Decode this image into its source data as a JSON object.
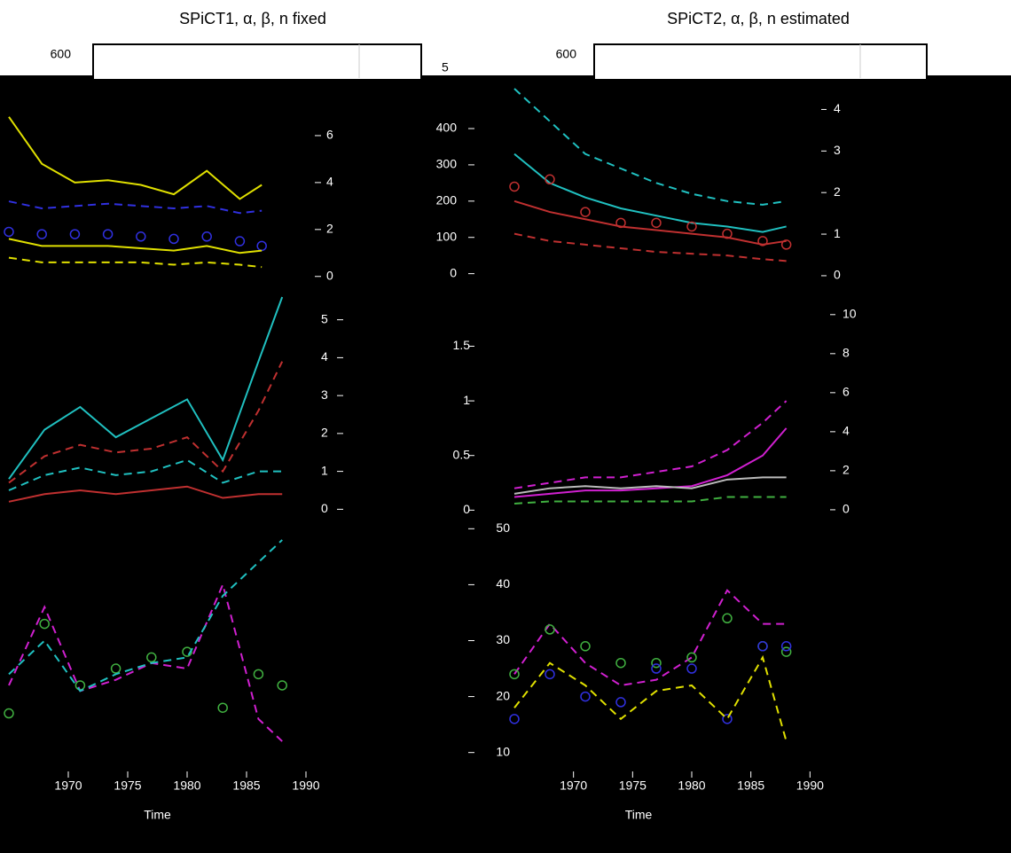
{
  "top_strip_labels": [
    "600",
    "5",
    "600"
  ],
  "chart_data": [
    {
      "type": "line",
      "title": "SPiCT1, α, β, n fixed",
      "x": [
        1965,
        1968,
        1971,
        1974,
        1977,
        1980,
        1983,
        1986,
        1988
      ],
      "xlim": [
        1965,
        1990
      ],
      "ylim": [
        -0.5,
        8
      ],
      "yticks": [
        0,
        2,
        4,
        6
      ],
      "series": [
        {
          "color": "#e0e000",
          "dash": false,
          "markers": false,
          "values": [
            6.8,
            4.8,
            4.0,
            4.1,
            3.9,
            3.5,
            4.5,
            3.3,
            3.9
          ]
        },
        {
          "color": "#3030e0",
          "dash": true,
          "markers": false,
          "values": [
            3.2,
            2.9,
            3.0,
            3.1,
            3.0,
            2.9,
            3.0,
            2.7,
            2.8
          ]
        },
        {
          "color": "#3030e0",
          "dash": false,
          "markers": true,
          "values": [
            1.9,
            1.8,
            1.8,
            1.8,
            1.7,
            1.6,
            1.7,
            1.5,
            1.3
          ]
        },
        {
          "color": "#e0e000",
          "dash": false,
          "markers": false,
          "values": [
            1.6,
            1.3,
            1.3,
            1.3,
            1.2,
            1.1,
            1.3,
            1.0,
            1.1
          ]
        },
        {
          "color": "#e0e000",
          "dash": true,
          "markers": false,
          "values": [
            0.8,
            0.6,
            0.6,
            0.6,
            0.6,
            0.5,
            0.6,
            0.5,
            0.4
          ]
        }
      ]
    },
    {
      "type": "line",
      "title": "SPiCT2, α, β, n estimated",
      "x": [
        1965,
        1968,
        1971,
        1974,
        1977,
        1980,
        1983,
        1986,
        1988
      ],
      "xlim": [
        1962,
        1989
      ],
      "ylim": [
        -40,
        510
      ],
      "yticks": [
        0,
        100,
        200,
        300,
        400
      ],
      "y2lim": [
        -0.3,
        4.5
      ],
      "y2ticks": [
        0,
        1,
        2,
        3,
        4
      ],
      "series": [
        {
          "color": "#20c0c0",
          "dash": true,
          "markers": false,
          "values": [
            510,
            420,
            330,
            290,
            250,
            220,
            200,
            190,
            200
          ]
        },
        {
          "color": "#20c0c0",
          "dash": false,
          "markers": false,
          "values": [
            330,
            250,
            210,
            180,
            160,
            140,
            130,
            115,
            130
          ]
        },
        {
          "color": "#c03030",
          "dash": false,
          "markers": true,
          "values": [
            240,
            260,
            170,
            140,
            140,
            130,
            110,
            90,
            80
          ]
        },
        {
          "color": "#c03030",
          "dash": false,
          "markers": false,
          "values": [
            200,
            170,
            150,
            130,
            120,
            110,
            100,
            80,
            90
          ]
        },
        {
          "color": "#c03030",
          "dash": true,
          "markers": false,
          "values": [
            110,
            90,
            80,
            70,
            60,
            55,
            50,
            40,
            35
          ]
        }
      ]
    },
    {
      "type": "line",
      "x": [
        1965,
        1968,
        1971,
        1974,
        1977,
        1980,
        1983,
        1986,
        1988
      ],
      "xlim": [
        1965,
        1990
      ],
      "ylim": [
        -0.6,
        5.6
      ],
      "yticks": [
        0,
        1,
        2,
        3,
        4,
        5
      ],
      "series": [
        {
          "color": "#20c0c0",
          "dash": false,
          "markers": false,
          "values": [
            0.8,
            2.1,
            2.7,
            1.9,
            2.4,
            2.9,
            1.3,
            3.9,
            5.6
          ]
        },
        {
          "color": "#c03030",
          "dash": true,
          "markers": false,
          "values": [
            0.7,
            1.4,
            1.7,
            1.5,
            1.6,
            1.9,
            1.0,
            2.6,
            3.9
          ]
        },
        {
          "color": "#20c0c0",
          "dash": true,
          "markers": false,
          "values": [
            0.5,
            0.9,
            1.1,
            0.9,
            1.0,
            1.3,
            0.7,
            1.0,
            1.0
          ]
        },
        {
          "color": "#c03030",
          "dash": false,
          "markers": false,
          "values": [
            0.2,
            0.4,
            0.5,
            0.4,
            0.5,
            0.6,
            0.3,
            0.4,
            0.4
          ]
        }
      ]
    },
    {
      "type": "line",
      "x": [
        1965,
        1968,
        1971,
        1974,
        1977,
        1980,
        1983,
        1986,
        1988
      ],
      "xlim": [
        1962,
        1989
      ],
      "ylim": [
        -0.2,
        1.95
      ],
      "yticks": [
        0.0,
        0.5,
        1.0,
        1.5
      ],
      "y2lim": [
        -1.14,
        10.9
      ],
      "y2ticks": [
        0,
        2,
        4,
        6,
        8,
        10
      ],
      "series": [
        {
          "color": "#d020d0",
          "dash": true,
          "markers": false,
          "values": [
            0.2,
            0.25,
            0.3,
            0.3,
            0.35,
            0.4,
            0.55,
            0.8,
            1.0
          ]
        },
        {
          "color": "#d020d0",
          "dash": false,
          "markers": false,
          "values": [
            0.12,
            0.15,
            0.18,
            0.18,
            0.2,
            0.22,
            0.32,
            0.5,
            0.75
          ]
        },
        {
          "color": "#bbbbbb",
          "dash": false,
          "markers": false,
          "values": [
            0.15,
            0.2,
            0.22,
            0.2,
            0.22,
            0.2,
            0.28,
            0.3,
            0.3
          ]
        },
        {
          "color": "#40b040",
          "dash": true,
          "markers": false,
          "values": [
            0.06,
            0.08,
            0.08,
            0.08,
            0.08,
            0.08,
            0.12,
            0.12,
            0.12
          ]
        }
      ]
    },
    {
      "type": "line",
      "xlabel": "Time",
      "x": [
        1965,
        1968,
        1971,
        1974,
        1977,
        1980,
        1983,
        1986,
        1988
      ],
      "xlim": [
        1965,
        1990
      ],
      "xticks": [
        1970,
        1975,
        1980,
        1985,
        1990
      ],
      "ylim": [
        9,
        51
      ],
      "series": [
        {
          "color": "#d020d0",
          "dash": true,
          "markers": false,
          "values": [
            22,
            36,
            21,
            23,
            26,
            25,
            40,
            16,
            12
          ]
        },
        {
          "color": "#40b040",
          "dash": false,
          "markers": true,
          "values": [
            17,
            33,
            22,
            25,
            27,
            28,
            18,
            24,
            22
          ]
        },
        {
          "color": "#20c0c0",
          "dash": true,
          "markers": false,
          "values": [
            24,
            30,
            21,
            24,
            26,
            27,
            38,
            44,
            48
          ]
        }
      ]
    },
    {
      "type": "line",
      "xlabel": "Time",
      "x": [
        1965,
        1968,
        1971,
        1974,
        1977,
        1980,
        1983,
        1986,
        1988
      ],
      "xlim": [
        1962,
        1989
      ],
      "xticks": [
        1970,
        1975,
        1980,
        1985,
        1990
      ],
      "ylim": [
        9,
        51
      ],
      "yticks": [
        10,
        20,
        30,
        40,
        50
      ],
      "series": [
        {
          "color": "#d020d0",
          "dash": true,
          "markers": false,
          "values": [
            24,
            33,
            26,
            22,
            23,
            27,
            39,
            33,
            33
          ]
        },
        {
          "color": "#40b040",
          "dash": false,
          "markers": true,
          "values": [
            24,
            32,
            29,
            26,
            26,
            27,
            34,
            29,
            28
          ]
        },
        {
          "color": "#3030e0",
          "dash": false,
          "markers": true,
          "values": [
            16,
            24,
            20,
            19,
            25,
            25,
            16,
            29,
            29
          ]
        },
        {
          "color": "#e0e000",
          "dash": true,
          "markers": false,
          "values": [
            18,
            26,
            22,
            16,
            21,
            22,
            16,
            27,
            12
          ]
        }
      ]
    }
  ]
}
